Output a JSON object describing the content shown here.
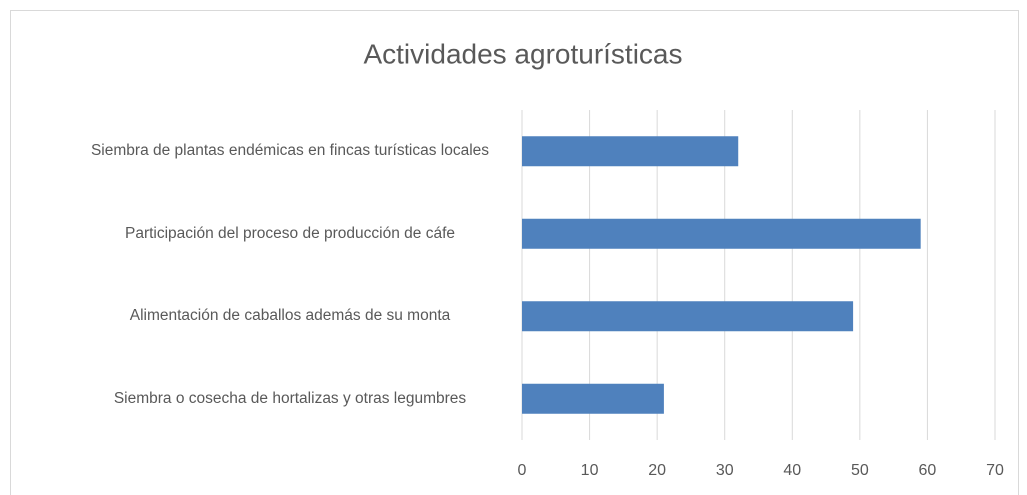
{
  "chart_data": {
    "type": "bar",
    "orientation": "horizontal",
    "title": "Actividades agroturísticas",
    "categories": [
      "Siembra de plantas endémicas en fincas turísticas locales",
      "Participación del proceso de producción de cáfe",
      "Alimentación de caballos además de su monta",
      "Siembra o cosecha de hortalizas y otras legumbres"
    ],
    "values": [
      32,
      59,
      49,
      21
    ],
    "color": "#4f81bd",
    "xlim": [
      0,
      70
    ],
    "xticks": [
      0,
      10,
      20,
      30,
      40,
      50,
      60,
      70
    ],
    "grid": true
  }
}
